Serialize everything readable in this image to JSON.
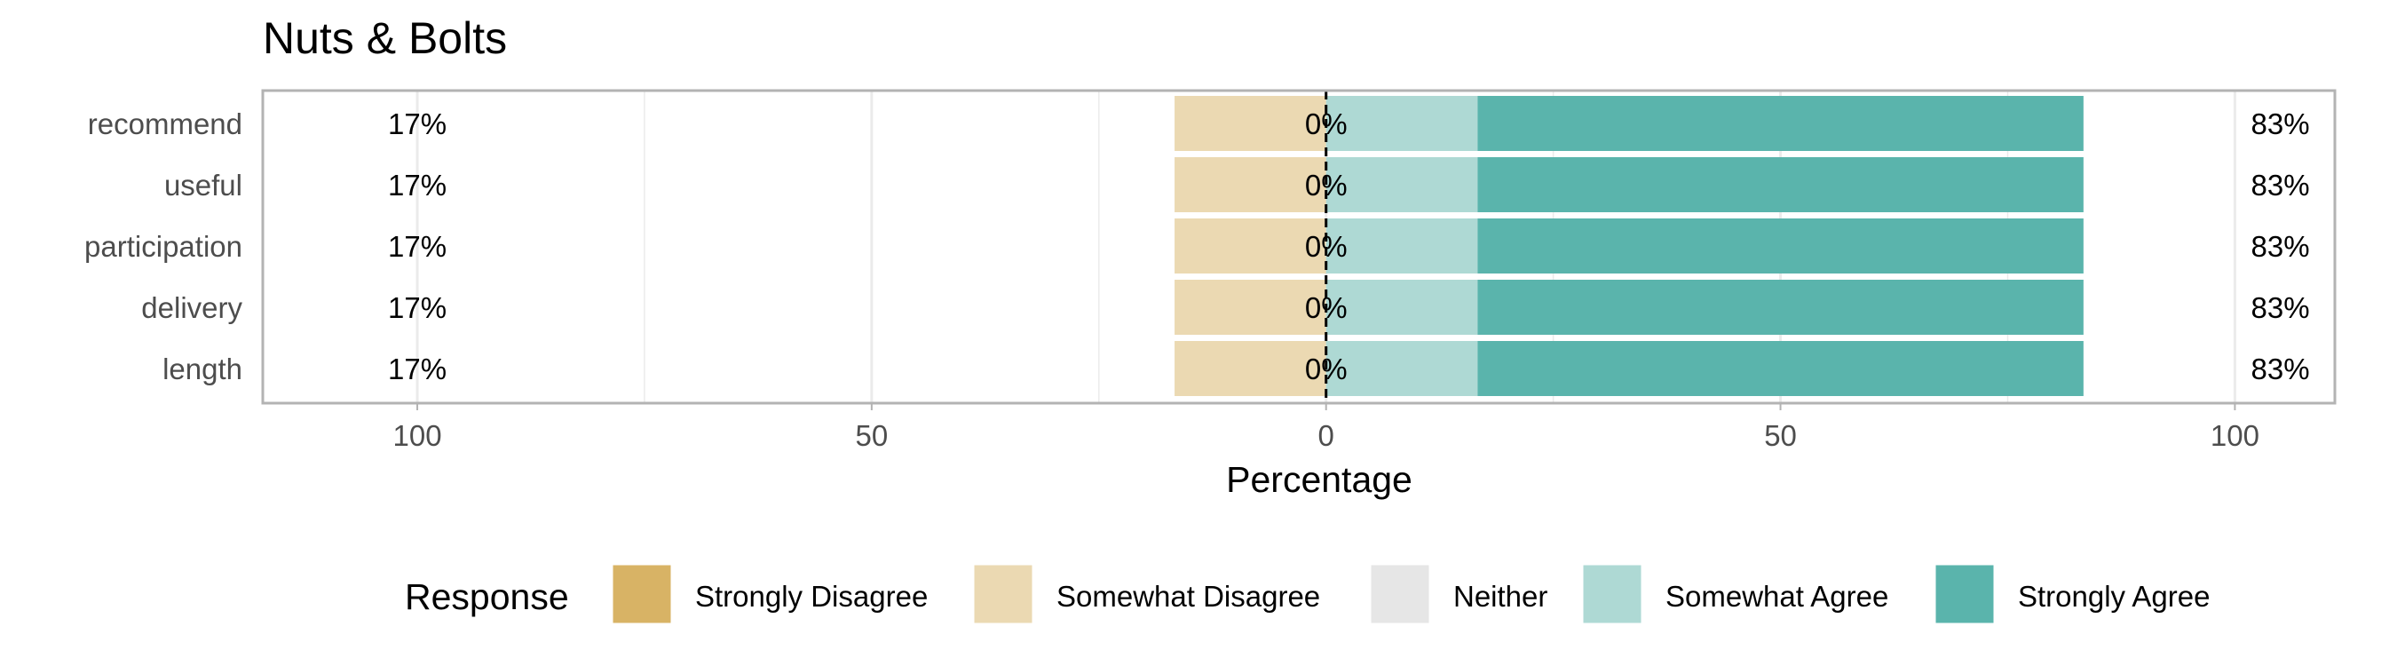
{
  "chart_data": {
    "type": "bar",
    "orientation": "horizontal",
    "stacked": "diverging",
    "title": "Nuts & Bolts",
    "xlabel": "Percentage",
    "ylabel": "",
    "xlim": [
      -117,
      111
    ],
    "x_ticks": [
      {
        "value": -100,
        "label": "100"
      },
      {
        "value": -50,
        "label": "50"
      },
      {
        "value": 0,
        "label": "0"
      },
      {
        "value": 50,
        "label": "50"
      },
      {
        "value": 100,
        "label": "100"
      }
    ],
    "grid": true,
    "categories": [
      "recommend",
      "useful",
      "participation",
      "delivery",
      "length"
    ],
    "series": [
      {
        "name": "Strongly Disagree",
        "color": "#D8B365",
        "values": [
          0,
          0,
          0,
          0,
          0
        ]
      },
      {
        "name": "Somewhat Disagree",
        "color": "#EBD9B2",
        "values": [
          16.67,
          16.67,
          16.67,
          16.67,
          16.67
        ]
      },
      {
        "name": "Neither",
        "color": "#E6E6E6",
        "values": [
          0,
          0,
          0,
          0,
          0
        ]
      },
      {
        "name": "Somewhat Agree",
        "color": "#AED9D4",
        "values": [
          16.67,
          16.67,
          16.67,
          16.67,
          16.67
        ]
      },
      {
        "name": "Strongly Agree",
        "color": "#5AB4AC",
        "values": [
          66.67,
          66.67,
          66.67,
          66.67,
          66.67
        ]
      }
    ],
    "low_labels": [
      "17%",
      "17%",
      "17%",
      "17%",
      "17%"
    ],
    "neutral_labels": [
      "0%",
      "0%",
      "0%",
      "0%",
      "0%"
    ],
    "high_labels": [
      "83%",
      "83%",
      "83%",
      "83%",
      "83%"
    ],
    "legend": {
      "title": "Response",
      "position": "bottom",
      "items": [
        "Strongly Disagree",
        "Somewhat Disagree",
        "Neither",
        "Somewhat Agree",
        "Strongly Agree"
      ]
    }
  }
}
